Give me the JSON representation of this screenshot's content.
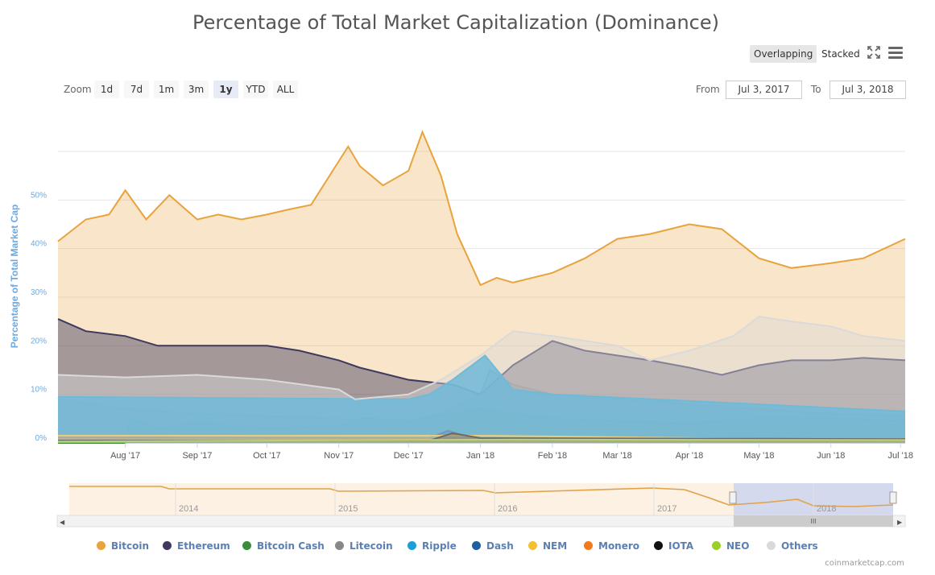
{
  "title": "Percentage of Total Market Capitalization (Dominance)",
  "toolbar": {
    "overlapping": "Overlapping",
    "stacked": "Stacked",
    "fullscreen_icon": "fullscreen-icon",
    "menu_icon": "menu-icon"
  },
  "zoom": {
    "label": "Zoom",
    "buttons": [
      "1d",
      "7d",
      "1m",
      "3m",
      "1y",
      "YTD",
      "ALL"
    ],
    "active": "1y"
  },
  "range": {
    "from_label": "From",
    "from": "Jul 3, 2017",
    "to_label": "To",
    "to": "Jul 3, 2018"
  },
  "navigator": {
    "years": [
      "2014",
      "2015",
      "2016",
      "2017",
      "2018"
    ]
  },
  "credit": "coinmarketcap.com",
  "chart_data": {
    "type": "area",
    "title": "Percentage of Total Market Capitalization (Dominance)",
    "ylabel": "Percentage of Total Market Cap",
    "ylim": [
      0,
      60
    ],
    "y_ticks": [
      "0%",
      "10%",
      "20%",
      "30%",
      "40%",
      "50%"
    ],
    "x_ticks": [
      "Aug '17",
      "Sep '17",
      "Oct '17",
      "Nov '17",
      "Dec '17",
      "Jan '18",
      "Feb '18",
      "Mar '18",
      "Apr '18",
      "May '18",
      "Jun '18",
      "Jul '18"
    ],
    "x_range": [
      "2017-07-03",
      "2018-07-03"
    ],
    "legend_position": "bottom",
    "grid": true,
    "series": [
      {
        "name": "Bitcoin",
        "color": "#e8a33d",
        "x": [
          "2017-07-03",
          "2017-07-15",
          "2017-07-25",
          "2017-08-01",
          "2017-08-10",
          "2017-08-20",
          "2017-09-01",
          "2017-09-10",
          "2017-09-20",
          "2017-10-01",
          "2017-10-10",
          "2017-10-20",
          "2017-11-01",
          "2017-11-05",
          "2017-11-10",
          "2017-11-20",
          "2017-12-01",
          "2017-12-07",
          "2017-12-15",
          "2017-12-22",
          "2018-01-01",
          "2018-01-08",
          "2018-01-15",
          "2018-02-01",
          "2018-02-15",
          "2018-03-01",
          "2018-03-15",
          "2018-04-01",
          "2018-04-15",
          "2018-05-01",
          "2018-05-15",
          "2018-06-01",
          "2018-06-15",
          "2018-07-03"
        ],
        "values": [
          41.5,
          46,
          47,
          52,
          46,
          51,
          46,
          47,
          46,
          47,
          48,
          49,
          58,
          61,
          57,
          53,
          56,
          64,
          55,
          43,
          32.5,
          34,
          33,
          35,
          38,
          42,
          43,
          45,
          44,
          38,
          36,
          37,
          38,
          42
        ]
      },
      {
        "name": "Ethereum",
        "color": "#3e3a5f",
        "x": [
          "2017-07-03",
          "2017-07-15",
          "2017-08-01",
          "2017-08-15",
          "2017-09-01",
          "2017-09-15",
          "2017-10-01",
          "2017-10-15",
          "2017-11-01",
          "2017-11-10",
          "2017-12-01",
          "2017-12-20",
          "2018-01-01",
          "2018-01-15",
          "2018-02-01",
          "2018-02-15",
          "2018-03-01",
          "2018-03-15",
          "2018-04-01",
          "2018-04-15",
          "2018-05-01",
          "2018-05-15",
          "2018-06-01",
          "2018-06-15",
          "2018-07-03"
        ],
        "values": [
          25.5,
          23,
          22,
          20,
          20,
          20,
          20,
          19,
          17,
          15.5,
          13,
          12,
          10,
          16,
          21,
          19,
          18,
          17,
          15.5,
          14,
          16,
          17,
          17,
          17.5,
          17
        ]
      },
      {
        "name": "Bitcoin Cash",
        "color": "#3b8c3b",
        "x": [
          "2017-07-03",
          "2017-08-01",
          "2017-08-03",
          "2017-08-15",
          "2017-09-01",
          "2017-10-01",
          "2017-11-01",
          "2017-11-12",
          "2017-12-01",
          "2017-12-20",
          "2018-01-01",
          "2018-01-15",
          "2018-02-01",
          "2018-03-01",
          "2018-04-01",
          "2018-05-01",
          "2018-06-01",
          "2018-07-03"
        ],
        "values": [
          0,
          0,
          5,
          3,
          4,
          3,
          3.5,
          5,
          4.5,
          6,
          7,
          6,
          5,
          4.5,
          4,
          5,
          5,
          4.5
        ]
      },
      {
        "name": "Litecoin",
        "color": "#888888",
        "x": [
          "2017-07-03",
          "2017-08-01",
          "2017-09-01",
          "2017-10-01",
          "2017-11-01",
          "2017-12-01",
          "2017-12-15",
          "2018-01-01",
          "2018-01-05",
          "2018-01-15",
          "2018-02-01",
          "2018-03-01",
          "2018-04-01",
          "2018-05-01",
          "2018-06-01",
          "2018-07-03"
        ],
        "values": [
          9,
          7,
          6,
          5.5,
          5,
          4.5,
          6,
          10,
          15,
          12,
          10,
          9,
          8,
          7,
          6,
          5.5
        ]
      },
      {
        "name": "Ripple",
        "color": "#1aa0d8",
        "x": [
          "2017-07-03",
          "2017-12-01",
          "2017-12-10",
          "2017-12-20",
          "2018-01-03",
          "2018-01-15",
          "2018-02-01",
          "2018-07-03"
        ],
        "values": [
          9.5,
          9,
          10,
          13,
          18,
          11,
          10,
          6.5
        ]
      },
      {
        "name": "Dash",
        "color": "#1f5fa0",
        "x": [
          "2017-07-03",
          "2017-12-10",
          "2017-12-18",
          "2017-12-25",
          "2018-01-01",
          "2018-07-03"
        ],
        "values": [
          1.2,
          1,
          2.5,
          1.5,
          1,
          0.8
        ]
      },
      {
        "name": "NEM",
        "color": "#f2c230",
        "x": [
          "2017-07-03",
          "2018-01-05",
          "2018-07-03"
        ],
        "values": [
          1.5,
          1.5,
          0.5
        ]
      },
      {
        "name": "Monero",
        "color": "#ef7a1f",
        "x": [
          "2017-07-03",
          "2018-07-03"
        ],
        "values": [
          0.7,
          0.8
        ]
      },
      {
        "name": "IOTA",
        "color": "#111111",
        "x": [
          "2017-07-03",
          "2017-12-10",
          "2017-12-20",
          "2018-01-01",
          "2018-07-03"
        ],
        "values": [
          0.5,
          0.5,
          2,
          1,
          0.8
        ]
      },
      {
        "name": "NEO",
        "color": "#9ccf2a",
        "x": [
          "2017-07-03",
          "2018-01-15",
          "2018-07-03"
        ],
        "values": [
          0.3,
          0.7,
          0.6
        ]
      },
      {
        "name": "Others",
        "color": "#dadada",
        "x": [
          "2017-07-03",
          "2017-08-01",
          "2017-09-01",
          "2017-10-01",
          "2017-11-01",
          "2017-11-08",
          "2017-12-01",
          "2017-12-15",
          "2018-01-01",
          "2018-01-15",
          "2018-02-01",
          "2018-03-01",
          "2018-03-15",
          "2018-04-01",
          "2018-04-20",
          "2018-05-01",
          "2018-05-15",
          "2018-06-01",
          "2018-06-15",
          "2018-07-03"
        ],
        "values": [
          14,
          13.5,
          14,
          13,
          11,
          9,
          10,
          13,
          18,
          23,
          22,
          20,
          17,
          19,
          22,
          26,
          25,
          24,
          22,
          21
        ]
      }
    ]
  }
}
